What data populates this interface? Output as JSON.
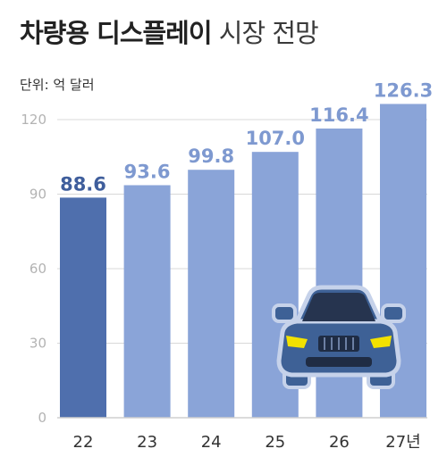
{
  "title_bold": "차량용 디스플레이",
  "title_light": "시장 전망",
  "unit_label": "단위: 억 달러",
  "colors": {
    "highlight_bar": "#4f6fad",
    "bar": "#8aa4d8",
    "highlight_label": "#3f5e9c",
    "label": "#7e99d0",
    "grid": "#d8d8d8",
    "axis_text": "#b3b3b3",
    "car_body": "#3e6196",
    "car_outline": "#c6d2ea"
  },
  "chart_data": {
    "type": "bar",
    "title": "차량용 디스플레이 시장 전망",
    "categories": [
      "22",
      "23",
      "24",
      "25",
      "26",
      "27년"
    ],
    "values": [
      88.6,
      93.6,
      99.8,
      107.0,
      116.4,
      126.3
    ],
    "value_labels": [
      "88.6",
      "93.6",
      "99.8",
      "107.0",
      "116.4",
      "126.3"
    ],
    "yticks": [
      "0",
      "30",
      "60",
      "90",
      "120"
    ],
    "ytick_values": [
      0,
      30,
      60,
      90,
      120
    ],
    "ylim": [
      0,
      120
    ],
    "unit": "단위: 억 달러",
    "grid": true,
    "highlight_index": 0
  }
}
